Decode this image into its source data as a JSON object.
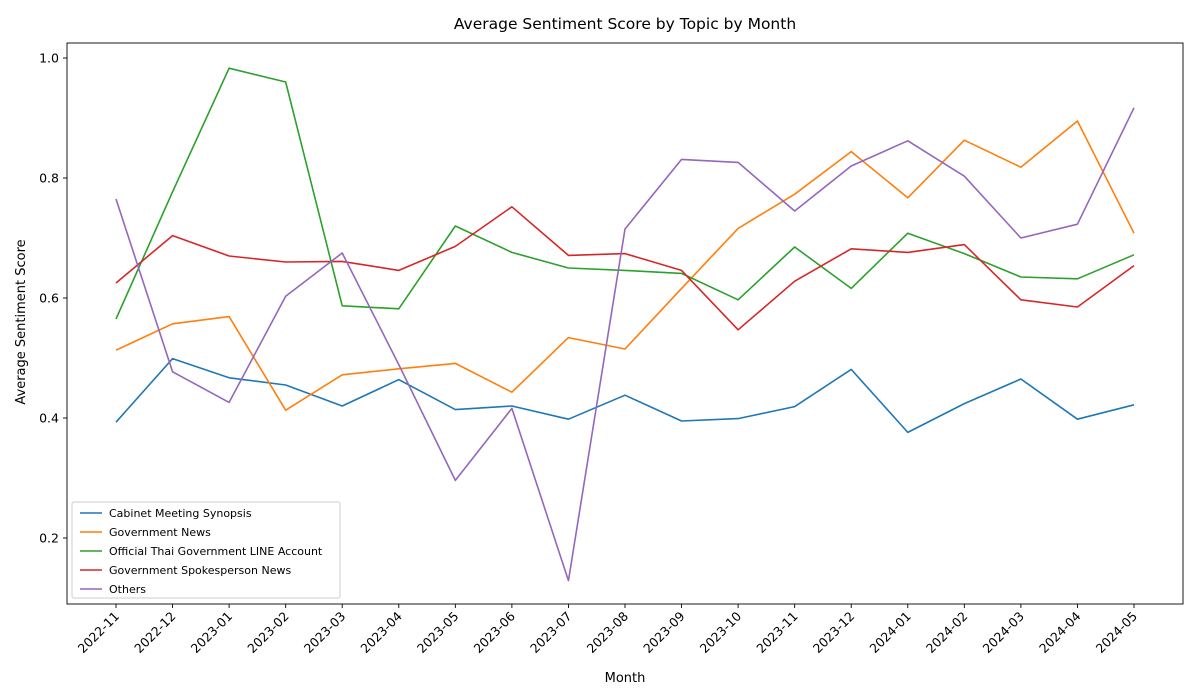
{
  "chart_data": {
    "type": "line",
    "title": "Average Sentiment Score by Topic by Month",
    "xlabel": "Month",
    "ylabel": "Average Sentiment Score",
    "ylim": [
      0.09,
      1.025
    ],
    "yticks": [
      0.2,
      0.4,
      0.6,
      0.8,
      1.0
    ],
    "ytick_labels": [
      "0.2",
      "0.4",
      "0.6",
      "0.8",
      "1.0"
    ],
    "grid": false,
    "legend_position": "lower-left",
    "categories": [
      "2022-11",
      "2022-12",
      "2023-01",
      "2023-02",
      "2023-03",
      "2023-04",
      "2023-05",
      "2023-06",
      "2023-07",
      "2023-08",
      "2023-09",
      "2023-10",
      "2023-11",
      "2023-12",
      "2024-01",
      "2024-02",
      "2024-03",
      "2024-04",
      "2024-05"
    ],
    "series": [
      {
        "name": "Cabinet Meeting Synopsis",
        "color": "#1f77b4",
        "values": [
          0.393,
          0.499,
          0.467,
          0.455,
          0.42,
          0.464,
          0.414,
          0.42,
          0.398,
          0.438,
          0.395,
          0.399,
          0.419,
          0.481,
          0.376,
          0.424,
          0.465,
          0.398,
          0.422
        ]
      },
      {
        "name": "Government News",
        "color": "#ff7f0e",
        "values": [
          0.513,
          0.557,
          0.569,
          0.413,
          0.472,
          0.482,
          0.491,
          0.443,
          0.534,
          0.515,
          0.616,
          0.716,
          0.773,
          0.844,
          0.767,
          0.863,
          0.818,
          0.895,
          0.708
        ]
      },
      {
        "name": "Official Thai Government LINE Account",
        "color": "#2ca02c",
        "values": [
          0.565,
          0.777,
          0.983,
          0.96,
          0.587,
          0.582,
          0.72,
          0.676,
          0.65,
          0.646,
          0.641,
          0.597,
          0.685,
          0.616,
          0.708,
          0.674,
          0.635,
          0.632,
          0.672
        ]
      },
      {
        "name": "Government Spokesperson News",
        "color": "#d62728",
        "values": [
          0.625,
          0.704,
          0.67,
          0.66,
          0.661,
          0.646,
          0.686,
          0.752,
          0.671,
          0.674,
          0.646,
          0.547,
          0.628,
          0.682,
          0.676,
          0.689,
          0.597,
          0.585,
          0.654
        ]
      },
      {
        "name": "Others",
        "color": "#9467bd",
        "values": [
          0.765,
          0.477,
          0.426,
          0.603,
          0.675,
          0.489,
          0.296,
          0.416,
          0.129,
          0.715,
          0.831,
          0.826,
          0.745,
          0.82,
          0.862,
          0.803,
          0.7,
          0.723,
          0.917
        ]
      }
    ]
  }
}
